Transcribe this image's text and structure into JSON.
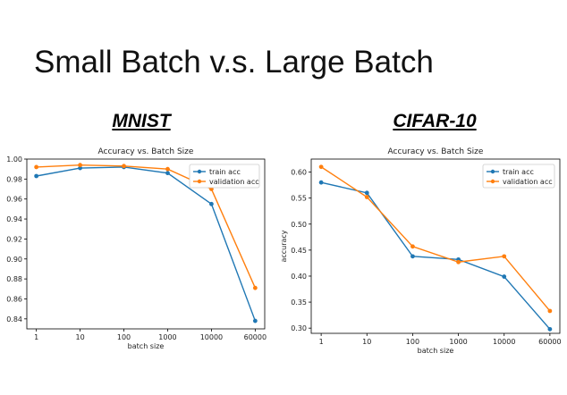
{
  "slide": {
    "title": "Small Batch v.s. Large Batch",
    "panels": [
      "MNIST",
      "CIFAR-10"
    ]
  },
  "chart_data": [
    {
      "type": "line",
      "title": "Accuracy vs. Batch Size",
      "xlabel": "batch size",
      "ylabel": "",
      "categories": [
        "1",
        "10",
        "100",
        "1000",
        "10000",
        "60000"
      ],
      "ylim": [
        0.83,
        1.0
      ],
      "yticks": [
        "0.84",
        "0.86",
        "0.88",
        "0.90",
        "0.92",
        "0.94",
        "0.96",
        "0.98",
        "1.00"
      ],
      "grid": false,
      "legend_position": "top-right",
      "series": [
        {
          "name": "train acc",
          "color": "#1f77b4",
          "values": [
            0.983,
            0.991,
            0.992,
            0.986,
            0.955,
            0.838
          ]
        },
        {
          "name": "validation acc",
          "color": "#ff7f0e",
          "values": [
            0.992,
            0.994,
            0.993,
            0.99,
            0.97,
            0.871
          ]
        }
      ]
    },
    {
      "type": "line",
      "title": "Accuracy vs. Batch Size",
      "xlabel": "batch size",
      "ylabel": "accuracy",
      "categories": [
        "1",
        "10",
        "100",
        "1000",
        "10000",
        "60000"
      ],
      "ylim": [
        0.29,
        0.625
      ],
      "yticks": [
        "0.30",
        "0.35",
        "0.40",
        "0.45",
        "0.50",
        "0.55",
        "0.60"
      ],
      "grid": false,
      "legend_position": "top-right",
      "series": [
        {
          "name": "train acc",
          "color": "#1f77b4",
          "values": [
            0.58,
            0.56,
            0.438,
            0.432,
            0.399,
            0.298
          ]
        },
        {
          "name": "validation acc",
          "color": "#ff7f0e",
          "values": [
            0.61,
            0.552,
            0.457,
            0.427,
            0.438,
            0.333
          ]
        }
      ]
    }
  ]
}
